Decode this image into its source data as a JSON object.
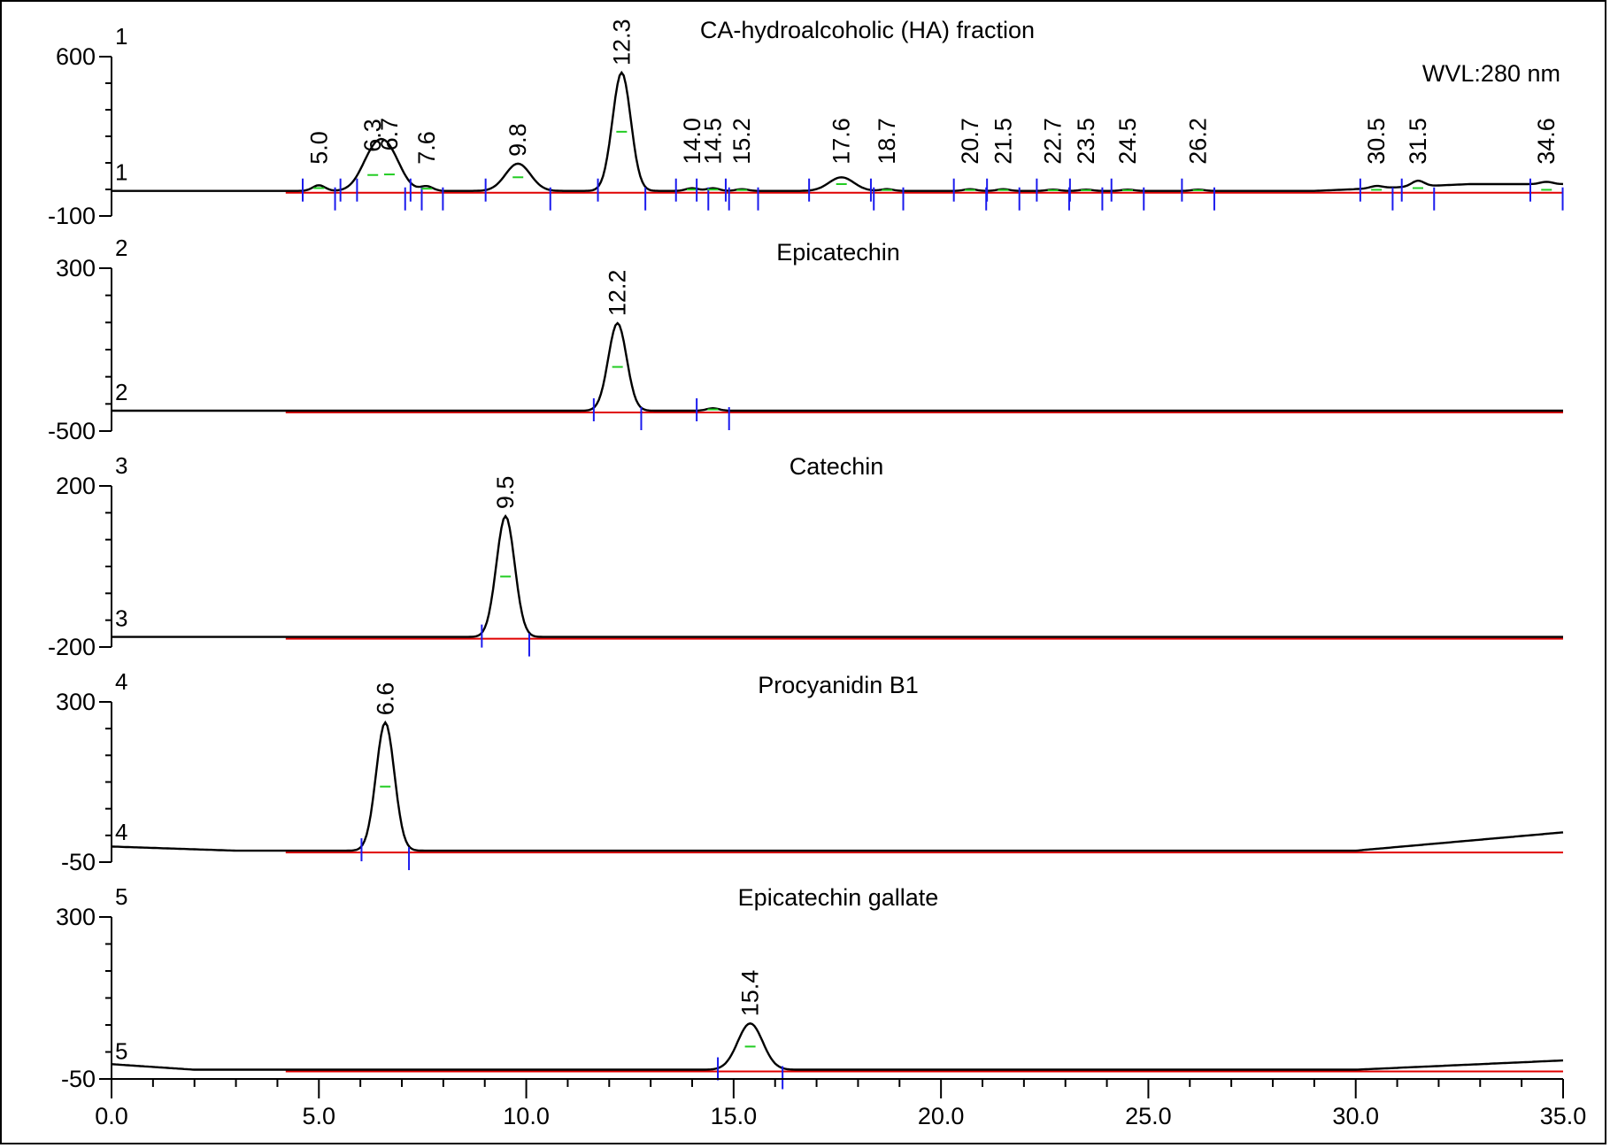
{
  "chart_data": {
    "type": "line",
    "x_axis": {
      "range": [
        0.0,
        35.0
      ],
      "tick_labels": [
        "0.0",
        "5.0",
        "10.0",
        "15.0",
        "20.0",
        "25.0",
        "30.0",
        "35.0"
      ]
    },
    "wavelength_label": "WVL:280 nm",
    "panels": [
      {
        "id": 1,
        "title": "CA-hydroalcoholic (HA) fraction",
        "index_label": "1",
        "baseline_label": "1",
        "y_tick_labels": [
          "600",
          "-100"
        ],
        "ylim": [
          -100,
          600
        ],
        "baseline_value": 10,
        "peaks": [
          {
            "rt": 5.0,
            "height": 25,
            "label": "5.0"
          },
          {
            "rt": 6.3,
            "height": 140,
            "label": "6.3"
          },
          {
            "rt": 6.7,
            "height": 145,
            "label": "6.7"
          },
          {
            "rt": 7.6,
            "height": 20,
            "label": "7.6"
          },
          {
            "rt": 9.8,
            "height": 120,
            "label": "9.8"
          },
          {
            "rt": 12.3,
            "height": 520,
            "label": "12.3"
          },
          {
            "rt": 14.0,
            "height": 12,
            "label": "14.0"
          },
          {
            "rt": 14.5,
            "height": 12,
            "label": "14.5"
          },
          {
            "rt": 15.2,
            "height": 8,
            "label": "15.2"
          },
          {
            "rt": 17.6,
            "height": 60,
            "label": "17.6"
          },
          {
            "rt": 18.7,
            "height": 8,
            "label": "18.7"
          },
          {
            "rt": 20.7,
            "height": 8,
            "label": "20.7"
          },
          {
            "rt": 21.5,
            "height": 8,
            "label": "21.5"
          },
          {
            "rt": 22.7,
            "height": 6,
            "label": "22.7"
          },
          {
            "rt": 23.5,
            "height": 6,
            "label": "23.5"
          },
          {
            "rt": 24.5,
            "height": 6,
            "label": "24.5"
          },
          {
            "rt": 26.2,
            "height": 6,
            "label": "26.2"
          },
          {
            "rt": 30.5,
            "height": 10,
            "label": "30.5"
          },
          {
            "rt": 31.5,
            "height": 25,
            "label": "31.5"
          },
          {
            "rt": 34.6,
            "height": 10,
            "label": "34.6"
          }
        ]
      },
      {
        "id": 2,
        "title": "Epicatechin",
        "index_label": "2",
        "baseline_label": "2",
        "y_tick_labels": [
          "300",
          "-500"
        ],
        "ylim": [
          -500,
          300
        ],
        "baseline_value": -400,
        "peaks": [
          {
            "rt": 12.2,
            "height": 430,
            "label": "12.2"
          },
          {
            "rt": 14.5,
            "height": 12,
            "label": ""
          }
        ]
      },
      {
        "id": 3,
        "title": "Catechin",
        "index_label": "3",
        "baseline_label": "3",
        "y_tick_labels": [
          "200",
          "-200"
        ],
        "ylim": [
          -200,
          200
        ],
        "baseline_value": -175,
        "peaks": [
          {
            "rt": 9.5,
            "height": 300,
            "label": "9.5"
          }
        ]
      },
      {
        "id": 4,
        "title": "Procyanidin B1",
        "index_label": "4",
        "baseline_label": "4",
        "y_tick_labels": [
          "300",
          "-50"
        ],
        "ylim": [
          -50,
          300
        ],
        "baseline_value": -25,
        "peaks": [
          {
            "rt": 6.6,
            "height": 280,
            "label": "6.6"
          }
        ]
      },
      {
        "id": 5,
        "title": "Epicatechin gallate",
        "index_label": "5",
        "baseline_label": "5",
        "y_tick_labels": [
          "300",
          "-50"
        ],
        "ylim": [
          -50,
          300
        ],
        "baseline_value": -30,
        "peaks": [
          {
            "rt": 15.4,
            "height": 100,
            "label": "15.4"
          }
        ]
      }
    ]
  }
}
